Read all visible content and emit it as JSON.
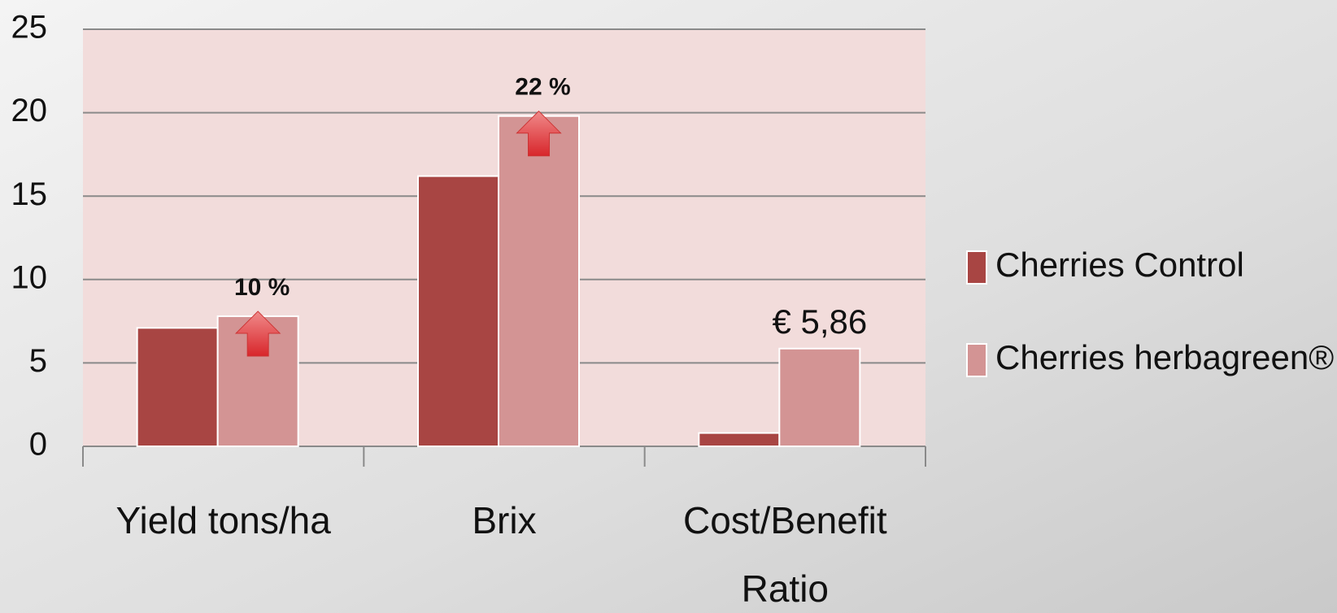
{
  "chart_data": {
    "type": "bar",
    "categories": [
      "Yield tons/ha",
      "Brix",
      "Cost/Benefit Ratio"
    ],
    "series": [
      {
        "name": "Cherries Control",
        "color": "#a84543",
        "values": [
          7.1,
          16.2,
          0.8
        ]
      },
      {
        "name": "Cherries herbagreen®",
        "color": "#d39494",
        "values": [
          7.8,
          19.8,
          5.86
        ],
        "value_labels": [
          null,
          null,
          "€ 5,86"
        ]
      }
    ],
    "annotations": [
      "10 %",
      "22 %"
    ],
    "ylim": [
      0,
      25
    ],
    "yticks": [
      0,
      5,
      10,
      15,
      20,
      25
    ],
    "grid": true,
    "legend": "right"
  }
}
